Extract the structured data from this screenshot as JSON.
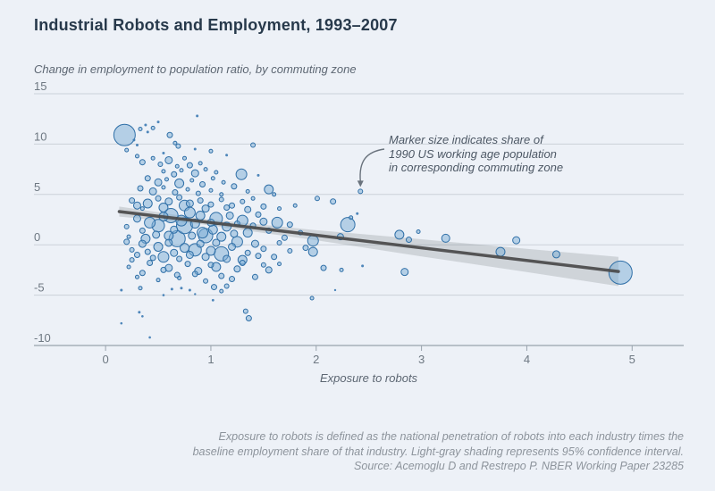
{
  "page": {
    "title": "Industrial Robots and Employment, 1993–2007",
    "subtitle": "Change in employment to population ratio, by commuting zone",
    "footnote_lines": [
      "Exposure to robots is defined as the national penetration of robots into each industry times the",
      "baseline employment share of that industry. Light-gray shading represents 95% confidence interval.",
      "Source: Acemoglu D and Restrepo P. NBER Working Paper 23285"
    ]
  },
  "chart_data": {
    "type": "scatter",
    "title": "Industrial Robots and Employment, 1993–2007",
    "xlabel": "Exposure to robots",
    "ylabel": "Change in employment to population ratio, by commuting zone",
    "xlim": [
      -0.68,
      5.49
    ],
    "ylim": [
      -10,
      15
    ],
    "x_ticks": [
      0,
      1,
      2,
      3,
      4,
      5
    ],
    "y_ticks": [
      15,
      10,
      5,
      0,
      -5,
      -10
    ],
    "grid": "horizontal gridlines at 15,10,5,0,-5; solid axis baseline at -10",
    "legend_position": "none",
    "annotation": {
      "lines": [
        "Marker size indicates share of",
        "1990 US working age population",
        "in corresponding commuting zone"
      ],
      "arrow_target_point": [
        2.42,
        5.3
      ]
    },
    "trend": {
      "x1": 0.13,
      "y1": 3.3,
      "x2": 4.87,
      "y2": -2.65,
      "meaning": "fitted regression line"
    },
    "confidence_band": [
      {
        "x": 0.13,
        "halfwidth": 0.5
      },
      {
        "x": 0.9,
        "halfwidth": 0.28
      },
      {
        "x": 2.0,
        "halfwidth": 0.5
      },
      {
        "x": 3.0,
        "halfwidth": 0.85
      },
      {
        "x": 4.0,
        "halfwidth": 1.15
      },
      {
        "x": 4.87,
        "halfwidth": 1.45
      }
    ],
    "points_format": "[exposure_to_robots, change_in_emp_pop_ratio, marker_radius_px]",
    "points": [
      [
        0.18,
        10.9,
        12
      ],
      [
        0.2,
        9.4,
        2
      ],
      [
        0.3,
        9.9,
        1.5
      ],
      [
        0.33,
        11.5,
        2
      ],
      [
        0.38,
        11.9,
        1.5
      ],
      [
        0.45,
        11.6,
        2
      ],
      [
        0.5,
        12.2,
        1.5
      ],
      [
        0.61,
        10.9,
        3
      ],
      [
        0.66,
        10.1,
        2
      ],
      [
        0.69,
        9.8,
        2.5
      ],
      [
        0.87,
        12.8,
        1.5
      ],
      [
        0.85,
        9.5,
        1.5
      ],
      [
        1.4,
        9.9,
        2.5
      ],
      [
        0.4,
        11.2,
        1.5
      ],
      [
        0.27,
        10.4,
        1.5
      ],
      [
        1.0,
        9.3,
        2
      ],
      [
        1.15,
        8.9,
        1.5
      ],
      [
        0.55,
        9.1,
        1.5
      ],
      [
        0.3,
        8.8,
        2
      ],
      [
        0.35,
        8.2,
        3
      ],
      [
        0.45,
        8.6,
        2
      ],
      [
        0.52,
        8.0,
        2.5
      ],
      [
        0.6,
        8.4,
        4
      ],
      [
        0.68,
        7.8,
        2
      ],
      [
        0.75,
        8.6,
        2
      ],
      [
        0.8,
        7.9,
        3
      ],
      [
        0.9,
        8.1,
        2
      ],
      [
        0.55,
        7.3,
        2
      ],
      [
        0.65,
        7.0,
        3
      ],
      [
        0.72,
        7.4,
        2
      ],
      [
        0.85,
        7.1,
        4
      ],
      [
        0.95,
        7.5,
        2
      ],
      [
        1.05,
        7.2,
        2
      ],
      [
        1.29,
        7.0,
        6
      ],
      [
        0.4,
        6.6,
        3
      ],
      [
        0.5,
        6.2,
        4
      ],
      [
        0.58,
        6.5,
        2
      ],
      [
        0.7,
        6.1,
        5
      ],
      [
        0.82,
        6.4,
        2
      ],
      [
        0.92,
        6.0,
        3
      ],
      [
        1.02,
        6.6,
        2
      ],
      [
        1.12,
        6.2,
        2
      ],
      [
        1.22,
        5.8,
        3
      ],
      [
        0.33,
        5.6,
        3
      ],
      [
        0.45,
        5.3,
        4
      ],
      [
        0.55,
        5.7,
        2
      ],
      [
        0.66,
        5.2,
        3
      ],
      [
        0.78,
        5.5,
        2
      ],
      [
        0.88,
        5.1,
        2.5
      ],
      [
        1.0,
        5.4,
        2
      ],
      [
        1.1,
        5.0,
        2
      ],
      [
        1.35,
        5.3,
        2
      ],
      [
        1.55,
        5.5,
        5
      ],
      [
        1.45,
        6.9,
        1.5
      ],
      [
        1.6,
        5.0,
        2
      ],
      [
        2.42,
        5.3,
        2.5
      ],
      [
        2.01,
        4.6,
        2.5
      ],
      [
        2.16,
        4.3,
        3
      ],
      [
        0.25,
        4.4,
        3
      ],
      [
        0.3,
        3.9,
        4
      ],
      [
        0.4,
        4.1,
        5
      ],
      [
        0.5,
        4.6,
        3
      ],
      [
        0.6,
        4.3,
        4
      ],
      [
        0.7,
        4.7,
        3
      ],
      [
        0.8,
        4.1,
        4
      ],
      [
        0.9,
        4.4,
        3
      ],
      [
        1.0,
        4.0,
        3
      ],
      [
        1.1,
        4.5,
        2.5
      ],
      [
        1.2,
        3.9,
        3
      ],
      [
        1.3,
        4.3,
        2.5
      ],
      [
        1.4,
        4.6,
        2
      ],
      [
        1.5,
        3.8,
        3
      ],
      [
        0.35,
        3.6,
        2
      ],
      [
        0.55,
        3.7,
        5
      ],
      [
        0.75,
        3.9,
        6
      ],
      [
        0.95,
        3.6,
        4
      ],
      [
        1.15,
        3.7,
        3
      ],
      [
        1.35,
        3.5,
        3.5
      ],
      [
        1.65,
        3.6,
        2
      ],
      [
        1.8,
        3.9,
        2
      ],
      [
        0.2,
        1.8,
        2.5
      ],
      [
        0.22,
        0.8,
        2
      ],
      [
        0.3,
        2.6,
        4
      ],
      [
        0.35,
        1.4,
        3
      ],
      [
        0.38,
        0.6,
        5
      ],
      [
        0.42,
        2.2,
        6
      ],
      [
        0.48,
        1.0,
        4
      ],
      [
        0.5,
        1.9,
        7
      ],
      [
        0.55,
        2.8,
        5
      ],
      [
        0.6,
        0.9,
        5
      ],
      [
        0.62,
        2.9,
        8
      ],
      [
        0.65,
        1.5,
        4
      ],
      [
        0.68,
        0.6,
        9
      ],
      [
        0.72,
        2.4,
        6
      ],
      [
        0.75,
        1.9,
        9
      ],
      [
        0.8,
        3.2,
        6
      ],
      [
        0.82,
        0.9,
        4
      ],
      [
        0.85,
        2.1,
        5
      ],
      [
        0.9,
        2.9,
        5
      ],
      [
        0.92,
        1.2,
        6
      ],
      [
        0.95,
        0.9,
        8
      ],
      [
        1.0,
        2.2,
        4
      ],
      [
        1.02,
        1.5,
        5
      ],
      [
        1.05,
        2.6,
        7
      ],
      [
        1.1,
        0.8,
        5
      ],
      [
        1.15,
        1.8,
        5
      ],
      [
        1.18,
        2.9,
        4
      ],
      [
        1.22,
        1.1,
        4
      ],
      [
        1.25,
        2.1,
        3
      ],
      [
        1.3,
        2.4,
        6
      ],
      [
        1.35,
        1.2,
        5
      ],
      [
        1.4,
        1.9,
        3
      ],
      [
        1.45,
        3.0,
        3
      ],
      [
        1.5,
        2.3,
        4
      ],
      [
        1.55,
        1.4,
        3
      ],
      [
        1.63,
        2.2,
        6
      ],
      [
        1.7,
        0.7,
        3
      ],
      [
        1.75,
        2.0,
        3
      ],
      [
        1.85,
        1.2,
        2.5
      ],
      [
        1.97,
        0.4,
        6
      ],
      [
        2.3,
        2.0,
        8
      ],
      [
        2.33,
        2.7,
        2
      ],
      [
        2.39,
        3.1,
        1.5
      ],
      [
        2.23,
        0.8,
        3.5
      ],
      [
        2.79,
        1.0,
        5
      ],
      [
        2.88,
        0.5,
        3
      ],
      [
        2.97,
        1.3,
        2
      ],
      [
        3.23,
        0.65,
        4.5
      ],
      [
        3.9,
        0.45,
        4
      ],
      [
        0.2,
        0.3,
        3
      ],
      [
        0.25,
        -0.5,
        2.5
      ],
      [
        0.3,
        -1.0,
        3
      ],
      [
        0.35,
        0.1,
        4
      ],
      [
        0.4,
        -0.7,
        3
      ],
      [
        0.45,
        -1.3,
        3
      ],
      [
        0.5,
        -0.2,
        5
      ],
      [
        0.55,
        -1.2,
        6
      ],
      [
        0.6,
        0.2,
        4
      ],
      [
        0.65,
        -0.8,
        4
      ],
      [
        0.7,
        -1.4,
        3
      ],
      [
        0.75,
        -0.3,
        5
      ],
      [
        0.8,
        -1.0,
        4
      ],
      [
        0.85,
        -0.5,
        7
      ],
      [
        0.9,
        0.1,
        4
      ],
      [
        0.95,
        -1.2,
        4
      ],
      [
        1.0,
        -0.6,
        5
      ],
      [
        1.05,
        0.2,
        4
      ],
      [
        1.1,
        -0.9,
        8
      ],
      [
        1.15,
        -1.4,
        4
      ],
      [
        1.2,
        -0.2,
        4
      ],
      [
        1.25,
        0.3,
        6
      ],
      [
        1.3,
        -1.5,
        5
      ],
      [
        1.35,
        -0.8,
        3
      ],
      [
        1.42,
        0.1,
        4
      ],
      [
        1.45,
        -1.1,
        3
      ],
      [
        1.5,
        -0.4,
        3
      ],
      [
        1.6,
        -1.2,
        3
      ],
      [
        1.65,
        0.2,
        2.5
      ],
      [
        1.75,
        -0.6,
        2.5
      ],
      [
        1.9,
        -0.3,
        3
      ],
      [
        1.97,
        -0.7,
        5
      ],
      [
        3.75,
        -0.7,
        5
      ],
      [
        4.28,
        -0.95,
        4
      ],
      [
        0.22,
        -2.2,
        2
      ],
      [
        0.3,
        -3.2,
        2
      ],
      [
        0.35,
        -2.8,
        3
      ],
      [
        0.42,
        -1.8,
        3
      ],
      [
        0.5,
        -3.5,
        2
      ],
      [
        0.55,
        -2.5,
        3
      ],
      [
        0.6,
        -2.3,
        4
      ],
      [
        0.68,
        -3.0,
        3
      ],
      [
        0.7,
        -3.3,
        2
      ],
      [
        0.78,
        -1.9,
        3
      ],
      [
        0.85,
        -2.9,
        3
      ],
      [
        0.88,
        -2.6,
        4
      ],
      [
        0.95,
        -3.6,
        2.5
      ],
      [
        1.0,
        -2.0,
        3
      ],
      [
        1.05,
        -2.2,
        5
      ],
      [
        1.1,
        -3.1,
        3
      ],
      [
        1.2,
        -3.4,
        3
      ],
      [
        1.25,
        -2.4,
        3.5
      ],
      [
        1.3,
        -1.8,
        3
      ],
      [
        1.42,
        -3.2,
        3
      ],
      [
        1.5,
        -2.0,
        2.5
      ],
      [
        1.55,
        -2.5,
        3.5
      ],
      [
        1.65,
        -1.9,
        2
      ],
      [
        2.07,
        -2.3,
        3
      ],
      [
        2.24,
        -2.5,
        2
      ],
      [
        2.44,
        -2.1,
        1.5
      ],
      [
        2.84,
        -2.7,
        4
      ],
      [
        0.25,
        -1.5,
        2.5
      ],
      [
        4.89,
        -2.76,
        13
      ],
      [
        0.15,
        -4.5,
        1.5
      ],
      [
        0.33,
        -4.3,
        2
      ],
      [
        0.63,
        -4.4,
        1.5
      ],
      [
        0.72,
        -4.3,
        1.5
      ],
      [
        0.8,
        -4.5,
        1.5
      ],
      [
        1.03,
        -4.2,
        3
      ],
      [
        1.1,
        -4.6,
        2
      ],
      [
        1.15,
        -4.1,
        2.5
      ],
      [
        2.18,
        -4.5,
        1.2
      ],
      [
        0.32,
        -6.7,
        1.5
      ],
      [
        0.35,
        -7.1,
        1.3
      ],
      [
        0.15,
        -7.8,
        1.3
      ],
      [
        0.42,
        -9.2,
        1.3
      ],
      [
        1.33,
        -6.6,
        2.5
      ],
      [
        1.36,
        -7.3,
        3
      ],
      [
        1.02,
        -5.5,
        1.4
      ],
      [
        1.96,
        -5.3,
        2
      ],
      [
        0.55,
        -5.0,
        1.3
      ],
      [
        0.85,
        -4.9,
        1.2
      ]
    ],
    "colors": {
      "background": "#edf1f7",
      "title_text": "#27394b",
      "marker_fill": "#7badd6",
      "marker_stroke": "#2f6fa7",
      "small_dot": "#3c7ab3",
      "trend_line": "#4a4a4a",
      "confidence_band": "#82878c",
      "gridline": "#cbd1d9",
      "axis_line": "#99a3ad",
      "tick_text": "#6e7882",
      "annotation_text": "#4d5865",
      "footnote_text": "#8d949c"
    }
  }
}
